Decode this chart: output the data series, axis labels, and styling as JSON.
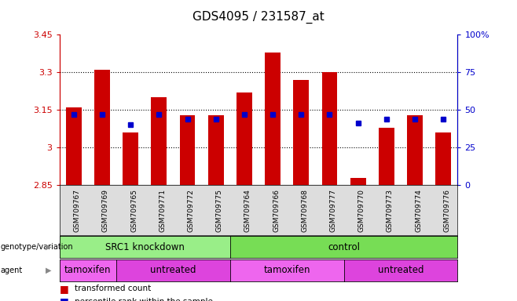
{
  "title": "GDS4095 / 231587_at",
  "samples": [
    "GSM709767",
    "GSM709769",
    "GSM709765",
    "GSM709771",
    "GSM709772",
    "GSM709775",
    "GSM709764",
    "GSM709766",
    "GSM709768",
    "GSM709777",
    "GSM709770",
    "GSM709773",
    "GSM709774",
    "GSM709776"
  ],
  "bar_values": [
    3.16,
    3.31,
    3.06,
    3.2,
    3.13,
    3.13,
    3.22,
    3.38,
    3.27,
    3.3,
    2.88,
    3.08,
    3.13,
    3.06
  ],
  "percentile_pct": [
    47,
    47,
    40,
    47,
    44,
    44,
    47,
    47,
    47,
    47,
    41,
    44,
    44,
    44
  ],
  "ymin": 2.85,
  "ymax": 3.45,
  "yticks": [
    2.85,
    3.0,
    3.15,
    3.3,
    3.45
  ],
  "ytick_labels": [
    "2.85",
    "3",
    "3.15",
    "3.3",
    "3.45"
  ],
  "right_yticks": [
    0,
    25,
    50,
    75,
    100
  ],
  "right_ytick_labels": [
    "0",
    "25",
    "50",
    "75",
    "100%"
  ],
  "bar_color": "#cc0000",
  "percentile_color": "#0000cc",
  "bar_bottom": 2.85,
  "genotype_groups": [
    {
      "label": "SRC1 knockdown",
      "start": 0,
      "end": 6,
      "color": "#99ee88"
    },
    {
      "label": "control",
      "start": 6,
      "end": 14,
      "color": "#77dd55"
    }
  ],
  "agent_groups": [
    {
      "label": "tamoxifen",
      "start": 0,
      "end": 2,
      "color": "#ee66ee"
    },
    {
      "label": "untreated",
      "start": 2,
      "end": 6,
      "color": "#dd44dd"
    },
    {
      "label": "tamoxifen",
      "start": 6,
      "end": 10,
      "color": "#ee66ee"
    },
    {
      "label": "untreated",
      "start": 10,
      "end": 14,
      "color": "#dd44dd"
    }
  ],
  "grid_dotted_at": [
    3.0,
    3.15,
    3.3
  ],
  "right_axis_color": "#0000cc",
  "bar_color_left_axis": "#cc0000"
}
